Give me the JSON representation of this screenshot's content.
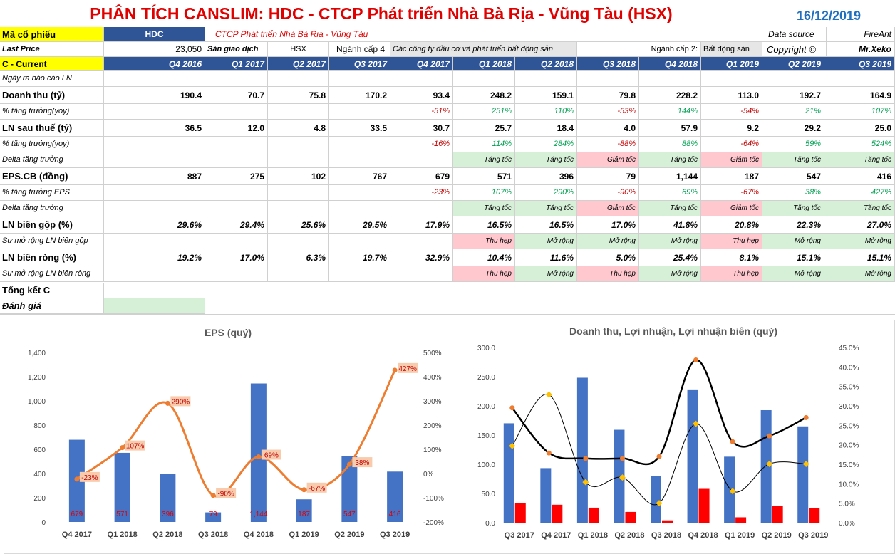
{
  "header": {
    "title": "PHÂN TÍCH CANSLIM: HDC - CTCP Phát triển Nhà Bà Rịa - Vũng Tàu (HSX)",
    "date": "16/12/2019"
  },
  "info": {
    "ticker_label": "Mã cổ phiếu",
    "ticker": "HDC",
    "company": "CTCP Phát triển Nhà Bà Rịa - Vũng Tàu",
    "data_source_label": "Data source",
    "data_source": "FireAnt",
    "last_price_label": "Last Price",
    "last_price": "23,050",
    "exchange_label": "Sàn giao dịch",
    "exchange": "HSX",
    "industry4_label": "Ngành cấp 4",
    "industry4": "Các công ty đầu cơ và phát triển bất động sản",
    "industry2_label": "Ngành cấp 2:",
    "industry2": "Bất động sản",
    "copyright": "Copyright ©",
    "author": "Mr.Xeko"
  },
  "table": {
    "section_label": "C - Current",
    "quarters": [
      "Q4 2016",
      "Q1 2017",
      "Q2 2017",
      "Q3 2017",
      "Q4 2017",
      "Q1 2018",
      "Q2 2018",
      "Q3 2018",
      "Q4 2018",
      "Q1 2019",
      "Q2 2019",
      "Q3 2019"
    ],
    "rows": [
      {
        "label": "Ngày ra báo cáo LN",
        "style": "sub",
        "values": [
          "",
          "",
          "",
          "",
          "",
          "",
          "",
          "",
          "",
          "",
          "",
          ""
        ]
      },
      {
        "label": "Doanh thu (tỷ)",
        "style": "main",
        "values": [
          "190.4",
          "70.7",
          "75.8",
          "170.2",
          "93.4",
          "248.2",
          "159.1",
          "79.8",
          "228.2",
          "113.0",
          "192.7",
          "164.9"
        ]
      },
      {
        "label": "% tăng trưởng(yoy)",
        "style": "pct",
        "values": [
          "",
          "",
          "",
          "",
          "-51%",
          "251%",
          "110%",
          "-53%",
          "144%",
          "-54%",
          "21%",
          "107%"
        ]
      },
      {
        "label": "LN sau thuế (tỷ)",
        "style": "main",
        "values": [
          "36.5",
          "12.0",
          "4.8",
          "33.5",
          "30.7",
          "25.7",
          "18.4",
          "4.0",
          "57.9",
          "9.2",
          "29.2",
          "25.0"
        ]
      },
      {
        "label": "% tăng trưởng(yoy)",
        "style": "pct",
        "values": [
          "",
          "",
          "",
          "",
          "-16%",
          "114%",
          "284%",
          "-88%",
          "88%",
          "-64%",
          "59%",
          "524%"
        ]
      },
      {
        "label": "Delta tăng trưởng",
        "style": "delta",
        "values": [
          "",
          "",
          "",
          "",
          "",
          "Tăng tốc",
          "Tăng tốc",
          "Giảm tốc",
          "Tăng tốc",
          "Giảm tốc",
          "Tăng tốc",
          "Tăng tốc"
        ]
      },
      {
        "label": "EPS.CB (đồng)",
        "style": "main",
        "values": [
          "887",
          "275",
          "102",
          "767",
          "679",
          "571",
          "396",
          "79",
          "1,144",
          "187",
          "547",
          "416"
        ]
      },
      {
        "label": "% tăng trưởng EPS",
        "style": "pct",
        "values": [
          "",
          "",
          "",
          "",
          "-23%",
          "107%",
          "290%",
          "-90%",
          "69%",
          "-67%",
          "38%",
          "427%"
        ]
      },
      {
        "label": "Delta tăng trưởng",
        "style": "delta",
        "values": [
          "",
          "",
          "",
          "",
          "",
          "Tăng tốc",
          "Tăng tốc",
          "Giảm tốc",
          "Tăng tốc",
          "Giảm tốc",
          "Tăng tốc",
          "Tăng tốc"
        ]
      },
      {
        "label": "LN biên gộp (%)",
        "style": "margin",
        "values": [
          "29.6%",
          "29.4%",
          "25.6%",
          "29.5%",
          "17.9%",
          "16.5%",
          "16.5%",
          "17.0%",
          "41.8%",
          "20.8%",
          "22.3%",
          "27.0%"
        ]
      },
      {
        "label": "Sự mở rộng LN biên gộp",
        "style": "delta",
        "values": [
          "",
          "",
          "",
          "",
          "",
          "Thu hẹp",
          "Mở rộng",
          "Mở rộng",
          "Mở rộng",
          "Thu hẹp",
          "Mở rộng",
          "Mở rộng"
        ]
      },
      {
        "label": "LN biên ròng (%)",
        "style": "margin",
        "values": [
          "19.2%",
          "17.0%",
          "6.3%",
          "19.7%",
          "32.9%",
          "10.4%",
          "11.6%",
          "5.0%",
          "25.4%",
          "8.1%",
          "15.1%",
          "15.1%"
        ]
      },
      {
        "label": "Sự mở rộng LN biên ròng",
        "style": "delta",
        "values": [
          "",
          "",
          "",
          "",
          "",
          "Thu hẹp",
          "Mở rộng",
          "Thu hẹp",
          "Mở rộng",
          "Thu hẹp",
          "Mở rộng",
          "Mở rộng"
        ]
      }
    ],
    "summary_label": "Tổng kết C",
    "rating_label": "Đánh giá"
  },
  "colors": {
    "header_blue": "#2f5597",
    "bar_blue": "#4472c4",
    "line_orange": "#ed7d31",
    "bar_red": "#ff0000",
    "marker_yellow": "#ffc000",
    "growth_green": "#00a050",
    "growth_red": "#c00000"
  },
  "chart_data": [
    {
      "type": "bar",
      "title": "EPS  (quý)",
      "categories": [
        "Q4 2017",
        "Q1 2018",
        "Q2 2018",
        "Q3 2018",
        "Q4 2018",
        "Q1 2019",
        "Q2 2019",
        "Q3 2019"
      ],
      "series": [
        {
          "name": "EPS",
          "axis": "left",
          "values": [
            679,
            571,
            396,
            79,
            1144,
            187,
            547,
            416
          ],
          "labels": [
            "679",
            "571",
            "396",
            "79",
            "1,144",
            "187",
            "547",
            "416"
          ]
        },
        {
          "name": "% tăng trưởng EPS",
          "type": "line",
          "axis": "right",
          "values": [
            -23,
            107,
            290,
            -90,
            69,
            -67,
            38,
            427
          ],
          "labels": [
            "-23%",
            "107%",
            "290%",
            "-90%",
            "69%",
            "-67%",
            "38%",
            "427%"
          ]
        }
      ],
      "ylim": [
        0,
        1400
      ],
      "yticks": [
        "0",
        "200",
        "400",
        "600",
        "800",
        "1,000",
        "1,200",
        "1,400"
      ],
      "y2lim": [
        -200,
        500
      ],
      "y2ticks": [
        "-200%",
        "-100%",
        "0%",
        "100%",
        "200%",
        "300%",
        "400%",
        "500%"
      ]
    },
    {
      "type": "bar",
      "title": "Doanh thu, Lợi nhuận, Lợi nhuận biên (quý)",
      "categories": [
        "Q3 2017",
        "Q4 2017",
        "Q1 2018",
        "Q2 2018",
        "Q3 2018",
        "Q4 2018",
        "Q1 2019",
        "Q2 2019",
        "Q3 2019"
      ],
      "series": [
        {
          "name": "Doanh thu",
          "axis": "left",
          "values": [
            170.2,
            93.4,
            248.2,
            159.1,
            79.8,
            228.2,
            113.0,
            192.7,
            164.9
          ]
        },
        {
          "name": "LN sau thuế",
          "axis": "left",
          "values": [
            33.5,
            30.7,
            25.7,
            18.4,
            4.0,
            57.9,
            9.2,
            29.2,
            25.0
          ]
        },
        {
          "name": "LN biên gộp",
          "type": "line",
          "axis": "right",
          "values": [
            29.5,
            17.9,
            16.5,
            16.5,
            17.0,
            41.8,
            20.8,
            22.3,
            27.0
          ]
        },
        {
          "name": "LN biên ròng",
          "type": "line",
          "axis": "right",
          "values": [
            19.7,
            32.9,
            10.4,
            11.6,
            5.0,
            25.4,
            8.1,
            15.1,
            15.1
          ]
        }
      ],
      "ylim": [
        0,
        300
      ],
      "yticks": [
        "0.0",
        "50.0",
        "100.0",
        "150.0",
        "200.0",
        "250.0",
        "300.0"
      ],
      "y2lim": [
        0,
        45
      ],
      "y2ticks": [
        "0.0%",
        "5.0%",
        "10.0%",
        "15.0%",
        "20.0%",
        "25.0%",
        "30.0%",
        "35.0%",
        "40.0%",
        "45.0%"
      ]
    }
  ]
}
